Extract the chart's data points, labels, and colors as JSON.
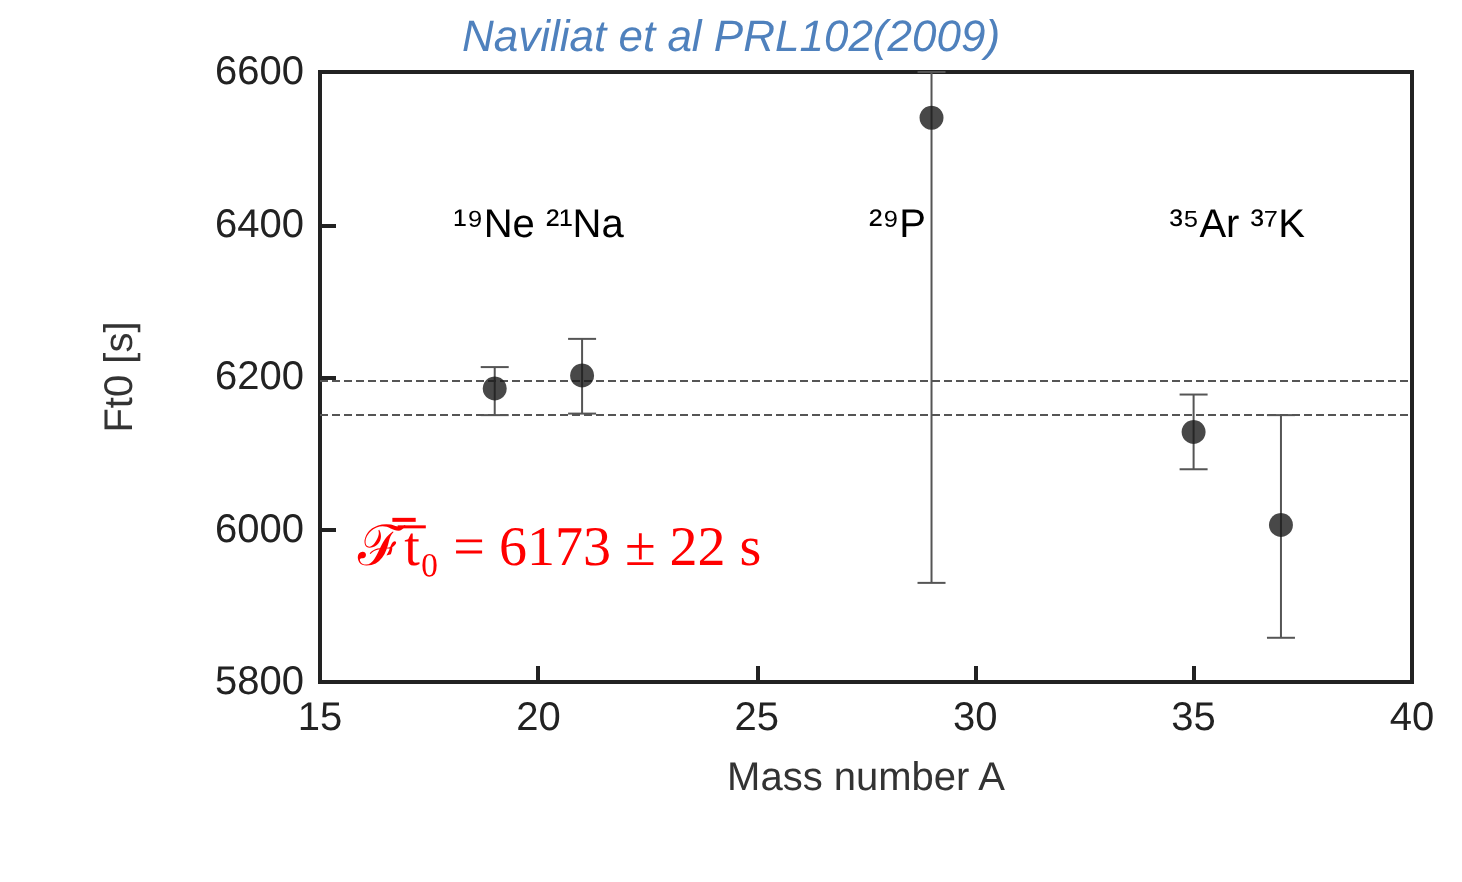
{
  "chart_data": {
    "type": "scatter",
    "title": "Naviliat et al PRL102(2009)",
    "xlabel": "Mass number A",
    "ylabel": "Ft0 [s]",
    "x": [
      19,
      21,
      29,
      35,
      37
    ],
    "series": [
      {
        "color": "#1a1a1a",
        "values": [
          6185,
          6202,
          6540,
          6128,
          6006
        ],
        "errors": [
          [
            6150,
            6213
          ],
          [
            6152,
            6250
          ],
          [
            5930,
            6600
          ],
          [
            6079,
            6177
          ],
          [
            5858,
            6150
          ]
        ]
      }
    ],
    "xlim": [
      15,
      40
    ],
    "xticks": [
      15,
      20,
      25,
      30,
      35,
      40
    ],
    "ylim": [
      5800,
      6600
    ],
    "yticks": [
      5800,
      6000,
      6200,
      6400,
      6600
    ],
    "ref_lines": [
      {
        "axis": "y",
        "value": 6195,
        "line_style": "dashed",
        "color": "#555555"
      },
      {
        "axis": "y",
        "value": 6151,
        "line_style": "dashed",
        "color": "#555555"
      }
    ],
    "annotations": [
      "¹⁹Ne ²¹Na",
      "²⁹P",
      "³⁵Ar ³⁷K",
      "ℱ̅t̅₀ = 6173 ± 22 s"
    ],
    "marker": "circle",
    "grid": false
  }
}
